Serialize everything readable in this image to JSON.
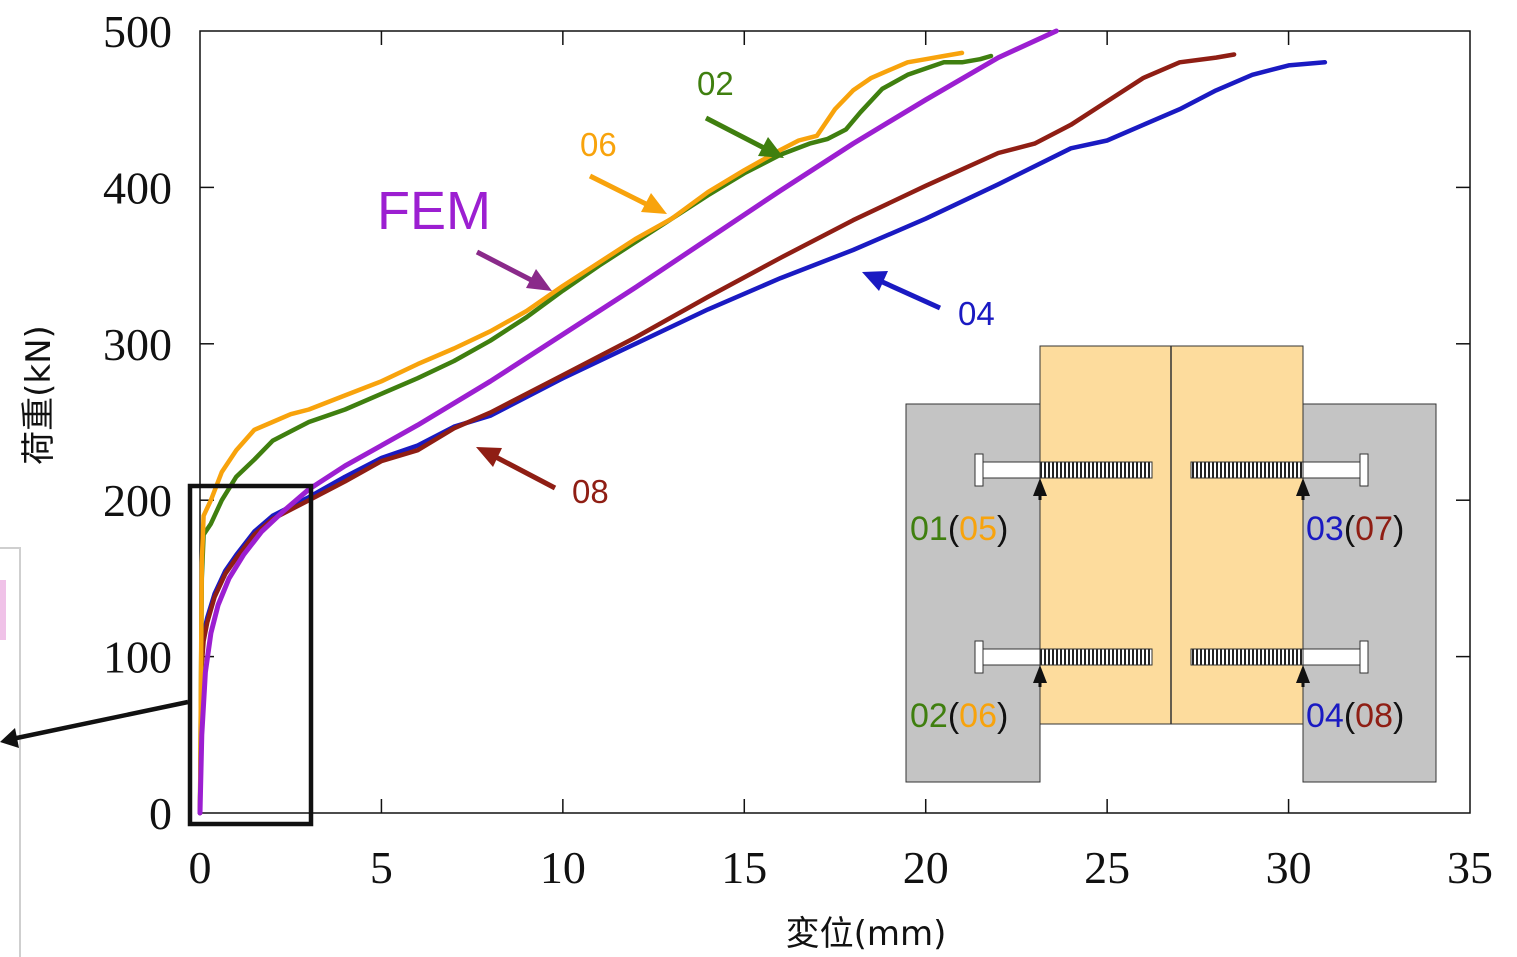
{
  "chart_data": {
    "type": "line",
    "xlabel": "変位(mm)",
    "ylabel": "荷重(kN)",
    "xlim": [
      0,
      35
    ],
    "ylim": [
      0,
      500
    ],
    "x_ticks": [
      "0",
      "5",
      "10",
      "15",
      "20",
      "25",
      "30",
      "35"
    ],
    "y_ticks": [
      "0",
      "100",
      "200",
      "300",
      "400",
      "500"
    ],
    "grid": false,
    "series": [
      {
        "name": "02",
        "color": "#3f7f0f",
        "x": [
          0,
          0.05,
          0.1,
          0.3,
          0.6,
          1,
          1.5,
          2,
          2.5,
          3,
          4,
          5,
          6,
          7,
          8,
          9,
          10,
          11,
          12,
          13,
          14,
          15,
          16,
          16.8,
          17.3,
          17.8,
          18.2,
          18.8,
          19.5,
          20,
          20.5,
          21,
          21.5,
          21.8
        ],
        "y": [
          0,
          150,
          178,
          185,
          200,
          215,
          226,
          238,
          244,
          250,
          258,
          268,
          278,
          289,
          302,
          317,
          334,
          350,
          365,
          380,
          395,
          409,
          421,
          428,
          431,
          437,
          448,
          463,
          472,
          476,
          480,
          480,
          482,
          484
        ]
      },
      {
        "name": "06",
        "color": "#f8a30c",
        "x": [
          0,
          0.05,
          0.1,
          0.3,
          0.6,
          1,
          1.5,
          2,
          2.5,
          3,
          4,
          5,
          6,
          7,
          8,
          9,
          10,
          11,
          12,
          13,
          14,
          15,
          16,
          16.5,
          17,
          17.5,
          18,
          18.5,
          19,
          19.5,
          20,
          20.5,
          21
        ],
        "y": [
          0,
          160,
          190,
          200,
          218,
          232,
          245,
          250,
          255,
          258,
          267,
          276,
          287,
          297,
          308,
          321,
          337,
          352,
          367,
          380,
          397,
          411,
          424,
          430,
          433,
          450,
          462,
          470,
          475,
          480,
          482,
          484,
          486
        ]
      },
      {
        "name": "04",
        "color": "#1a1ac2",
        "x": [
          0,
          0.05,
          0.1,
          0.2,
          0.4,
          0.7,
          1,
          1.5,
          2,
          3,
          4,
          5,
          6,
          7,
          8,
          10,
          12,
          14,
          16,
          18,
          20,
          22,
          24,
          25,
          26,
          27,
          28,
          29,
          30,
          31
        ],
        "y": [
          0,
          100,
          115,
          125,
          140,
          155,
          165,
          180,
          190,
          202,
          215,
          227,
          235,
          247,
          254,
          278,
          300,
          322,
          342,
          360,
          380,
          402,
          425,
          430,
          440,
          450,
          462,
          472,
          478,
          480
        ]
      },
      {
        "name": "08",
        "color": "#8f1e14",
        "x": [
          0,
          0.05,
          0.1,
          0.2,
          0.4,
          0.7,
          1,
          1.5,
          2,
          3,
          4,
          5,
          6,
          7,
          8,
          10,
          12,
          14,
          16,
          18,
          20,
          22,
          23,
          24,
          25,
          26,
          27,
          28,
          28.5
        ],
        "y": [
          0,
          95,
          110,
          122,
          138,
          153,
          163,
          178,
          188,
          200,
          212,
          225,
          232,
          246,
          256,
          280,
          304,
          330,
          355,
          379,
          401,
          422,
          428,
          440,
          455,
          470,
          480,
          483,
          485
        ]
      },
      {
        "name": "FEM",
        "color": "#9c1fd1",
        "x": [
          0,
          0.05,
          0.15,
          0.3,
          0.5,
          0.8,
          1.2,
          1.7,
          2.3,
          3,
          4,
          5,
          6,
          8,
          10,
          12,
          14,
          16,
          18,
          20,
          22,
          23.6
        ],
        "y": [
          0,
          50,
          90,
          115,
          133,
          150,
          165,
          180,
          193,
          207,
          222,
          235,
          248,
          276,
          306,
          336,
          367,
          398,
          428,
          456,
          483,
          500
        ]
      }
    ],
    "annotations": [
      {
        "text": "02",
        "color": "#3f7f0f"
      },
      {
        "text": "06",
        "color": "#f8a30c"
      },
      {
        "text": "FEM",
        "color": "#9c1fd1"
      },
      {
        "text": "04",
        "color": "#1a1ac2"
      },
      {
        "text": "08",
        "color": "#8f1e14"
      }
    ],
    "inset_labels": [
      {
        "parts": [
          {
            "t": "01",
            "c": "#3f7f0f"
          },
          {
            "t": "(",
            "c": "#111111"
          },
          {
            "t": "05",
            "c": "#f8a30c"
          },
          {
            "t": ")",
            "c": "#111111"
          }
        ]
      },
      {
        "parts": [
          {
            "t": "03",
            "c": "#1a1ac2"
          },
          {
            "t": "(",
            "c": "#111111"
          },
          {
            "t": "07",
            "c": "#8f1e14"
          },
          {
            "t": ")",
            "c": "#111111"
          }
        ]
      },
      {
        "parts": [
          {
            "t": "02",
            "c": "#3f7f0f"
          },
          {
            "t": "(",
            "c": "#111111"
          },
          {
            "t": "06",
            "c": "#f8a30c"
          },
          {
            "t": ")",
            "c": "#111111"
          }
        ]
      },
      {
        "parts": [
          {
            "t": "04",
            "c": "#1a1ac2"
          },
          {
            "t": "(",
            "c": "#111111"
          },
          {
            "t": "08",
            "c": "#8f1e14"
          },
          {
            "t": ")",
            "c": "#111111"
          }
        ]
      }
    ]
  }
}
